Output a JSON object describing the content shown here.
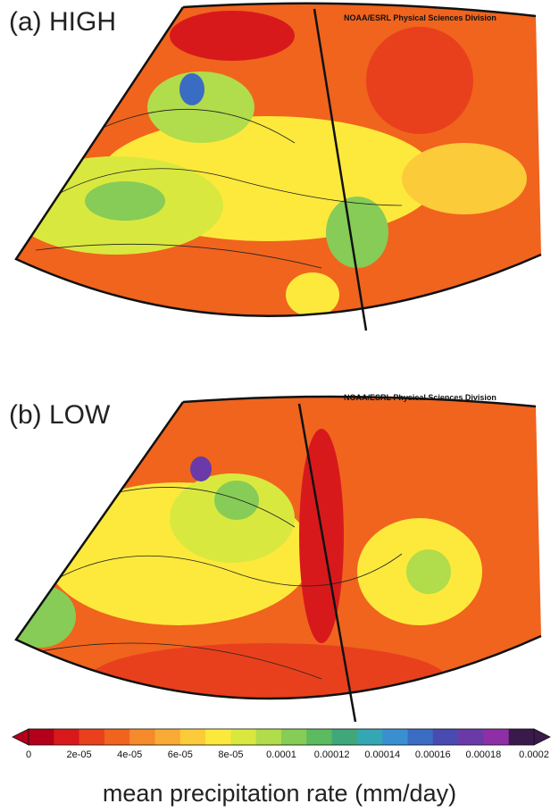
{
  "panels": [
    {
      "label": "(a) HIGH",
      "credit": "NOAA/ESRL Physical Sciences Division"
    },
    {
      "label": "(b) LOW",
      "credit": "NOAA/ESRL Physical Sciences Division"
    }
  ],
  "colorbar": {
    "title": "mean precipitation rate (mm/day)",
    "ticks": [
      "0",
      "2e-05",
      "4e-05",
      "6e-05",
      "8e-05",
      "0.0001",
      "0.00012",
      "0.00014",
      "0.00016",
      "0.00018",
      "0.0002"
    ],
    "colors": [
      "#b3001a",
      "#d7191c",
      "#e8401c",
      "#f0641e",
      "#f58a2a",
      "#f8aa35",
      "#fbcb3a",
      "#fde93c",
      "#d9e83f",
      "#b1dc4b",
      "#86cc57",
      "#5bbb5f",
      "#3fa77a",
      "#33a8b4",
      "#3a8fd0",
      "#3a6cc4",
      "#4a4bb0",
      "#6a3aa8",
      "#8e2fa6",
      "#3a1a4a"
    ]
  }
}
